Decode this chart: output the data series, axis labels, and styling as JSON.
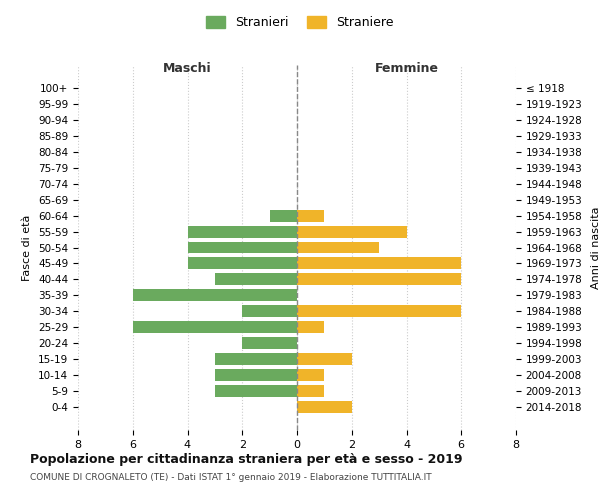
{
  "age_groups": [
    "100+",
    "95-99",
    "90-94",
    "85-89",
    "80-84",
    "75-79",
    "70-74",
    "65-69",
    "60-64",
    "55-59",
    "50-54",
    "45-49",
    "40-44",
    "35-39",
    "30-34",
    "25-29",
    "20-24",
    "15-19",
    "10-14",
    "5-9",
    "0-4"
  ],
  "birth_years": [
    "≤ 1918",
    "1919-1923",
    "1924-1928",
    "1929-1933",
    "1934-1938",
    "1939-1943",
    "1944-1948",
    "1949-1953",
    "1954-1958",
    "1959-1963",
    "1964-1968",
    "1969-1973",
    "1974-1978",
    "1979-1983",
    "1984-1988",
    "1989-1993",
    "1994-1998",
    "1999-2003",
    "2004-2008",
    "2009-2013",
    "2014-2018"
  ],
  "maschi": [
    0,
    0,
    0,
    0,
    0,
    0,
    0,
    0,
    1,
    4,
    4,
    4,
    3,
    6,
    2,
    6,
    2,
    3,
    3,
    3,
    0
  ],
  "femmine": [
    0,
    0,
    0,
    0,
    0,
    0,
    0,
    0,
    1,
    4,
    3,
    6,
    6,
    0,
    6,
    1,
    0,
    2,
    1,
    1,
    2
  ],
  "maschi_color": "#6aaa5e",
  "femmine_color": "#f0b429",
  "title": "Popolazione per cittadinanza straniera per età e sesso - 2019",
  "subtitle": "COMUNE DI CROGNALETO (TE) - Dati ISTAT 1° gennaio 2019 - Elaborazione TUTTITALIA.IT",
  "xlabel_left": "Maschi",
  "xlabel_right": "Femmine",
  "ylabel_left": "Fasce di età",
  "ylabel_right": "Anni di nascita",
  "legend_stranieri": "Stranieri",
  "legend_straniere": "Straniere",
  "xlim": 8,
  "background_color": "#ffffff",
  "grid_color": "#cccccc"
}
